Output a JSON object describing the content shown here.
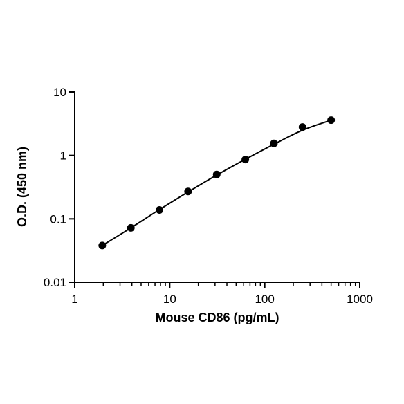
{
  "chart_data": {
    "type": "scatter",
    "xlabel": "Mouse CD86 (pg/mL)",
    "ylabel": "O.D. (450 nm)",
    "xlog": true,
    "ylog": true,
    "xlim": [
      1,
      1000
    ],
    "ylim": [
      0.01,
      10
    ],
    "xticks": [
      1,
      10,
      100,
      1000
    ],
    "yticks": [
      0.01,
      0.1,
      1,
      10
    ],
    "xminorticks": [
      2,
      3,
      4,
      5,
      6,
      7,
      8,
      9,
      20,
      30,
      40,
      50,
      60,
      70,
      80,
      90,
      200,
      300,
      400,
      500,
      600,
      700,
      800,
      900
    ],
    "color": "#000000",
    "x": [
      1.95,
      3.9,
      7.8,
      15.6,
      31.25,
      62.5,
      125,
      250,
      500
    ],
    "values": [
      0.038,
      0.072,
      0.138,
      0.27,
      0.5,
      0.86,
      1.55,
      2.8,
      3.6
    ],
    "fit": {
      "x": [
        1.95,
        3.9,
        7.8,
        15.6,
        31.25,
        62.5,
        125,
        250,
        500
      ],
      "values": [
        0.038,
        0.072,
        0.14,
        0.265,
        0.49,
        0.87,
        1.5,
        2.5,
        3.6
      ]
    }
  }
}
